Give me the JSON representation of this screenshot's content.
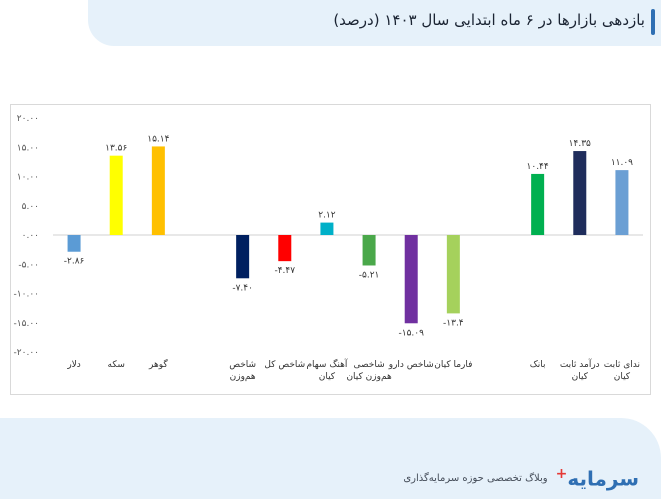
{
  "header": {
    "title": "بازدهی بازارها در ۶ ماه ابتدایی سال ۱۴۰۳ (درصد)"
  },
  "footer": {
    "logo_text": "سرمایه",
    "logo_mark": "+",
    "tagline": "وبلاگ تخصصی حوزه سرمایه‌گذاری"
  },
  "colors": {
    "header_bg": "#e6f1fa",
    "accent": "#2f6fb3",
    "brand_red": "#e53935"
  },
  "chart_data": {
    "type": "bar",
    "title": "",
    "xlabel": "",
    "ylabel": "",
    "ylim": [
      -20,
      20
    ],
    "grid": false,
    "legend": "none",
    "y_ticks": [
      20,
      15,
      10,
      5,
      0,
      -5,
      -10,
      -15,
      -20
    ],
    "y_tick_labels": [
      "۲۰.۰۰",
      "۱۵.۰۰",
      "۱۰.۰۰",
      "۵.۰۰",
      "۰.۰۰",
      "-۵.۰۰",
      "-۱۰.۰۰",
      "-۱۵.۰۰",
      "-۲۰.۰۰"
    ],
    "categories": [
      "دلار",
      "سکه",
      "گوهر",
      "",
      "شاخص هم‌وزن",
      "شاخص کل",
      "آهنگ سهام کیان",
      "شاخصی هم‌وزن کیان",
      "شاخص دارو",
      "فارما کیان",
      "",
      "بانک",
      "درآمد ثابت کیان",
      "ندای ثابت کیان"
    ],
    "category_lines": [
      [
        "دلار"
      ],
      [
        "سکه"
      ],
      [
        "گوهر"
      ],
      [],
      [
        "شاخص",
        "هم‌وزن"
      ],
      [
        "شاخص کل"
      ],
      [
        "آهنگ سهام",
        "کیان"
      ],
      [
        "شاخصی",
        "هم‌وزن کیان"
      ],
      [
        "شاخص دارو"
      ],
      [
        "فارما کیان"
      ],
      [],
      [
        "بانک"
      ],
      [
        "درآمد ثابت",
        "کیان"
      ],
      [
        "ندای ثابت",
        "کیان"
      ]
    ],
    "values": [
      -2.86,
      13.56,
      15.14,
      null,
      -7.4,
      -4.47,
      2.12,
      -5.21,
      -15.09,
      -13.4,
      null,
      10.44,
      14.35,
      11.09
    ],
    "value_labels": [
      "-۲.۸۶",
      "۱۳.۵۶",
      "۱۵.۱۴",
      "",
      "-۷.۴۰",
      "-۴.۴۷",
      "۲.۱۲",
      "-۵.۲۱",
      "-۱۵.۰۹",
      "-۱۳.۴",
      "",
      "۱۰.۴۴",
      "۱۴.۳۵",
      "۱۱.۰۹"
    ],
    "bar_colors": [
      "#5b9bd5",
      "#ffff00",
      "#ffc000",
      "",
      "#002060",
      "#ff0000",
      "#00b0c8",
      "#4aa84a",
      "#7030a0",
      "#a5d15c",
      "",
      "#00b050",
      "#1f2d5c",
      "#6b9fd4"
    ]
  }
}
